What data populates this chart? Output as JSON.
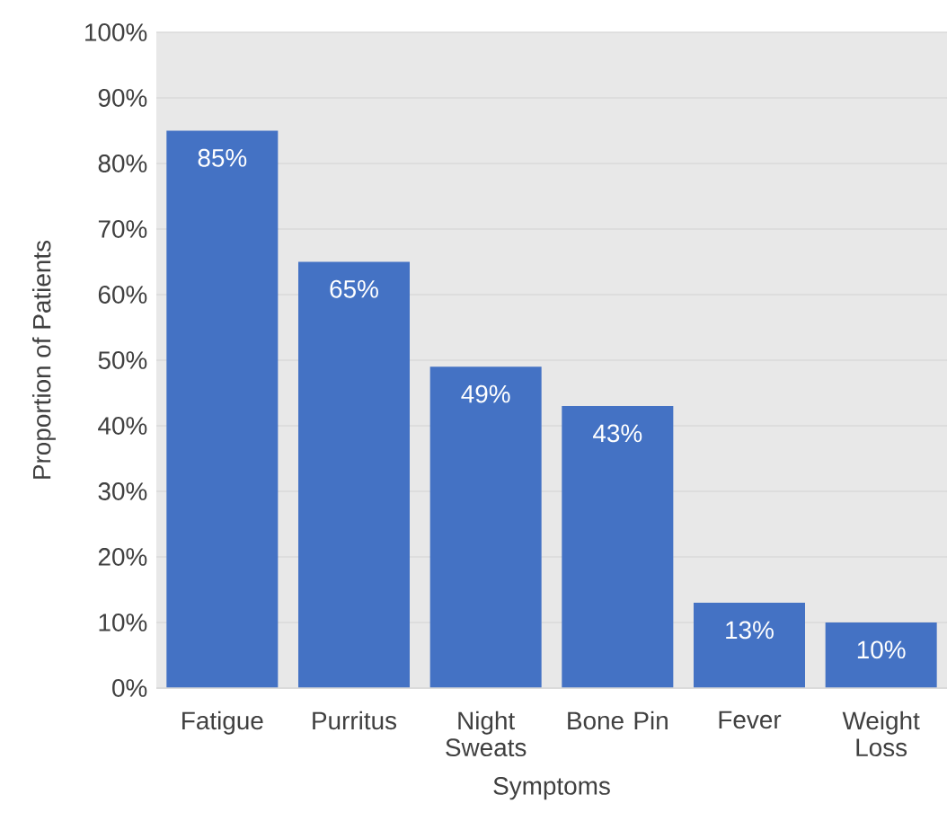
{
  "chart_data": {
    "type": "bar",
    "xlabel": "Symptoms",
    "ylabel": "Proportion of Patients",
    "categories": [
      "Fatigue",
      "Purritus",
      "Night Sweats",
      "Bone Pin",
      "Fever",
      "Weight Loss"
    ],
    "values": [
      85,
      65,
      49,
      43,
      13,
      10
    ],
    "value_labels": [
      "85%",
      "65%",
      "49%",
      "43%",
      "13%",
      "10%"
    ],
    "color": "#4472c4",
    "ylim": [
      0,
      100
    ],
    "yticks": [
      {
        "value": 0,
        "label": "0%"
      },
      {
        "value": 10,
        "label": "10%"
      },
      {
        "value": 20,
        "label": "20%"
      },
      {
        "value": 30,
        "label": "30%"
      },
      {
        "value": 40,
        "label": "40%"
      },
      {
        "value": 50,
        "label": "50%"
      },
      {
        "value": 60,
        "label": "60%"
      },
      {
        "value": 70,
        "label": "70%"
      },
      {
        "value": 80,
        "label": "80%"
      },
      {
        "value": 90,
        "label": "90%"
      },
      {
        "value": 100,
        "label": "100%"
      }
    ],
    "grid": "y"
  }
}
